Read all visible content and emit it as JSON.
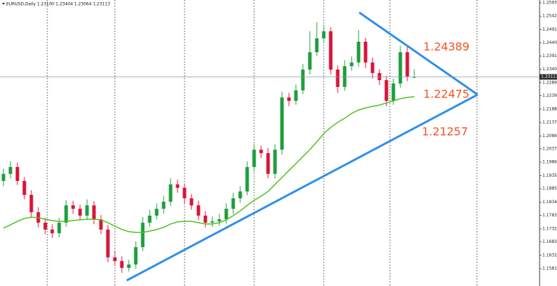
{
  "chart_data": {
    "type": "candlestick",
    "title": "EURUSD,Daily 1.23100 1.23404 1.23064 1.23113",
    "ylim": [
      1.1515,
      1.2604
    ],
    "yticks": [
      1.25935,
      1.25425,
      1.24915,
      1.24405,
      {
        "value": 1.2391,
        "label": "1.23910"
      },
      {
        "value": 1.234,
        "label": "1.23400"
      },
      {
        "value": 1.2289,
        "label": "1.22890"
      },
      1.22395,
      1.21885,
      1.21375,
      1.20865,
      1.20375,
      1.19865,
      {
        "value": 1.1935,
        "label": "1.19350"
      },
      1.18855,
      1.18345,
      1.17835,
      1.17325,
      {
        "value": 1.1683,
        "label": "1.16830"
      },
      {
        "value": 1.1632,
        "label": "1.16320"
      },
      {
        "value": 1.1581,
        "label": "1.15810"
      }
    ],
    "current_price": 1.23113,
    "bull_color": "#1e9e3c",
    "bear_color": "#d9143a",
    "ma_color": "#4cc21e",
    "annotations": [
      "1.24389",
      "1.22475",
      "1.21257"
    ],
    "ohlc": [
      [
        1.1915,
        1.1962,
        1.1895,
        1.1942
      ],
      [
        1.1942,
        1.199,
        1.1925,
        1.1968
      ],
      [
        1.1968,
        1.1985,
        1.19,
        1.1915
      ],
      [
        1.1915,
        1.193,
        1.1845,
        1.1862
      ],
      [
        1.1862,
        1.188,
        1.1778,
        1.1796
      ],
      [
        1.1796,
        1.1815,
        1.1738,
        1.1756
      ],
      [
        1.1756,
        1.1775,
        1.1712,
        1.173
      ],
      [
        1.173,
        1.175,
        1.1698,
        1.1716
      ],
      [
        1.1716,
        1.1775,
        1.17,
        1.1756
      ],
      [
        1.1756,
        1.1842,
        1.174,
        1.1822
      ],
      [
        1.1822,
        1.184,
        1.179,
        1.1809
      ],
      [
        1.1809,
        1.1825,
        1.1765,
        1.1783
      ],
      [
        1.1783,
        1.1845,
        1.177,
        1.1822
      ],
      [
        1.1822,
        1.1838,
        1.175,
        1.1769
      ],
      [
        1.1769,
        1.1785,
        1.1712,
        1.173
      ],
      [
        1.173,
        1.1748,
        1.1605,
        1.1624
      ],
      [
        1.1624,
        1.165,
        1.1592,
        1.161
      ],
      [
        1.161,
        1.1628,
        1.1565,
        1.1584
      ],
      [
        1.1584,
        1.1615,
        1.157,
        1.1597
      ],
      [
        1.1597,
        1.1685,
        1.158,
        1.1663
      ],
      [
        1.1663,
        1.1778,
        1.1648,
        1.1756
      ],
      [
        1.1756,
        1.1805,
        1.174,
        1.1783
      ],
      [
        1.1783,
        1.183,
        1.1768,
        1.1809
      ],
      [
        1.1809,
        1.1858,
        1.179,
        1.1836
      ],
      [
        1.1836,
        1.1925,
        1.182,
        1.1902
      ],
      [
        1.1902,
        1.192,
        1.187,
        1.1889
      ],
      [
        1.1889,
        1.1905,
        1.183,
        1.1849
      ],
      [
        1.1849,
        1.1865,
        1.1805,
        1.1822
      ],
      [
        1.1822,
        1.184,
        1.1765,
        1.1783
      ],
      [
        1.1783,
        1.18,
        1.1738,
        1.1756
      ],
      [
        1.1756,
        1.178,
        1.174,
        1.1761
      ],
      [
        1.1761,
        1.179,
        1.1745,
        1.1769
      ],
      [
        1.1769,
        1.183,
        1.1752,
        1.1809
      ],
      [
        1.1809,
        1.187,
        1.179,
        1.1849
      ],
      [
        1.1849,
        1.1895,
        1.1832,
        1.1875
      ],
      [
        1.1875,
        1.199,
        1.186,
        1.1968
      ],
      [
        1.1968,
        1.2055,
        1.195,
        1.2034
      ],
      [
        1.2034,
        1.205,
        1.2002,
        1.2021
      ],
      [
        1.2021,
        1.204,
        1.1925,
        1.1942
      ],
      [
        1.1942,
        1.2055,
        1.1925,
        1.2034
      ],
      [
        1.2034,
        1.2255,
        1.2015,
        1.2233
      ],
      [
        1.2233,
        1.225,
        1.22,
        1.222
      ],
      [
        1.222,
        1.2282,
        1.2205,
        1.226
      ],
      [
        1.226,
        1.236,
        1.2245,
        1.2339
      ],
      [
        1.2339,
        1.2485,
        1.232,
        1.2405
      ],
      [
        1.2405,
        1.252,
        1.239,
        1.2458
      ],
      [
        1.2458,
        1.251,
        1.244,
        1.2485
      ],
      [
        1.2485,
        1.25,
        1.232,
        1.2339
      ],
      [
        1.2339,
        1.2355,
        1.225,
        1.2273
      ],
      [
        1.2273,
        1.2375,
        1.2258,
        1.2352
      ],
      [
        1.2352,
        1.239,
        1.2335,
        1.2366
      ],
      [
        1.2366,
        1.249,
        1.235,
        1.2445
      ],
      [
        1.2445,
        1.246,
        1.2345,
        1.2366
      ],
      [
        1.2366,
        1.2385,
        1.2305,
        1.2326
      ],
      [
        1.2326,
        1.234,
        1.228,
        1.2299
      ],
      [
        1.2299,
        1.2315,
        1.22,
        1.222
      ],
      [
        1.222,
        1.2305,
        1.2205,
        1.2286
      ],
      [
        1.2286,
        1.243,
        1.227,
        1.2405
      ],
      [
        1.2405,
        1.2425,
        1.2295,
        1.2313
      ],
      [
        1.231,
        1.234,
        1.2306,
        1.2311
      ]
    ],
    "ma": [
      1.1735,
      1.1748,
      1.1761,
      1.1772,
      1.1777,
      1.1775,
      1.1769,
      1.1764,
      1.1761,
      1.1761,
      1.1764,
      1.1767,
      1.1769,
      1.1769,
      1.1767,
      1.1756,
      1.1743,
      1.173,
      1.1722,
      1.1719,
      1.1719,
      1.1724,
      1.173,
      1.1738,
      1.1751,
      1.1759,
      1.1761,
      1.1761,
      1.1756,
      1.1751,
      1.1751,
      1.1756,
      1.1767,
      1.1783,
      1.1801,
      1.1822,
      1.1841,
      1.1857,
      1.1875,
      1.1902,
      1.1928,
      1.1955,
      1.1981,
      1.2008,
      1.2034,
      1.2064,
      1.2095,
      1.2119,
      1.2138,
      1.2154,
      1.2172,
      1.2185,
      1.2193,
      1.2199,
      1.2204,
      1.2212,
      1.222,
      1.2228,
      1.2233,
      1.2236
    ]
  }
}
